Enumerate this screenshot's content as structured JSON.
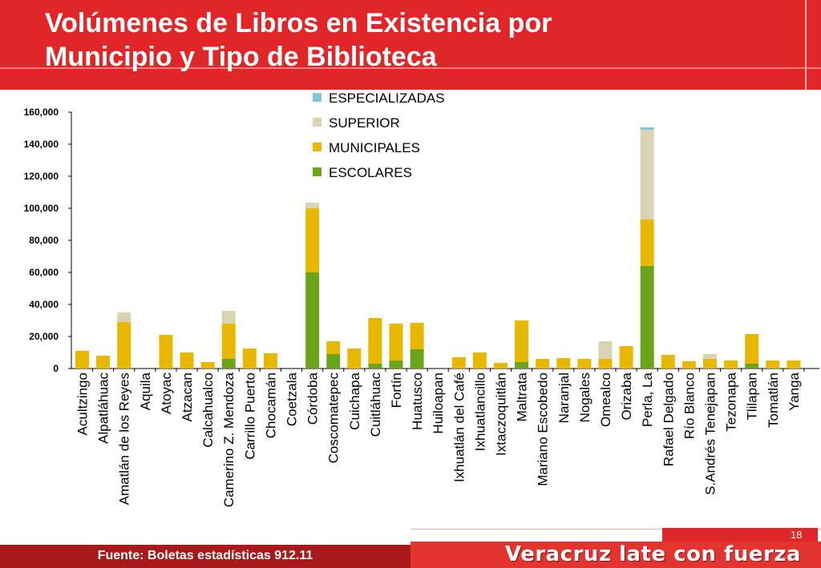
{
  "title_line1": "Volúmenes de Libros en Existencia por",
  "title_line2": "Municipio y Tipo de Biblioteca",
  "footer": {
    "source": "Fuente: Boletas estadísticas 912.11",
    "page_number": "18",
    "slogan": "Veracruz late con fuerza"
  },
  "colors": {
    "header": "#e1262a",
    "footer_dark": "#a8191c",
    "escolares": "#6aa51a",
    "municipales": "#e8b800",
    "superior": "#d8d4b4",
    "especializadas": "#7ec6d8"
  },
  "chart_data": {
    "type": "bar",
    "stacked": true,
    "categories": [
      "Acultzingo",
      "Alpatláhuac",
      "Amatlán de los Reyes",
      "Aquila",
      "Atoyac",
      "Atzacan",
      "Calcahualco",
      "Camerino Z. Mendoza",
      "Carrillo Puerto",
      "Chocamán",
      "Coetzala",
      "Córdoba",
      "Coscomatepec",
      "Cuichapa",
      "Cuitláhuac",
      "Fortín",
      "Huatusco",
      "Huiloapan",
      "Ixhuatlán del Café",
      "Ixhuatlancillo",
      "Ixtaczoquitlán",
      "Maltrata",
      "Mariano Escobedo",
      "Naranjal",
      "Nogales",
      "Omealco",
      "Orizaba",
      "Perla, La",
      "Rafael Delgado",
      "Río Blanco",
      "S.Andrés Tenejapan",
      "Tezonapa",
      "Tlilapan",
      "Tomatlán",
      "Yanga"
    ],
    "series": [
      {
        "name": "ESCOLARES",
        "values": [
          0,
          0,
          0,
          0,
          0,
          0,
          0,
          6000,
          0,
          0,
          0,
          60000,
          9000,
          0,
          3000,
          5000,
          12000,
          0,
          0,
          0,
          0,
          4000,
          0,
          0,
          0,
          0,
          0,
          64000,
          0,
          0,
          0,
          0,
          3000,
          0,
          0
        ]
      },
      {
        "name": "MUNICIPALES",
        "values": [
          11000,
          8000,
          29000,
          0,
          21000,
          10000,
          4000,
          22000,
          12500,
          9500,
          0,
          40000,
          8000,
          12500,
          28500,
          23000,
          16500,
          0,
          7000,
          10000,
          3500,
          26000,
          6000,
          6500,
          6000,
          6000,
          14000,
          29000,
          8500,
          4500,
          6000,
          5000,
          18500,
          5000,
          5000
        ]
      },
      {
        "name": "SUPERIOR",
        "values": [
          0,
          0,
          6000,
          0,
          0,
          0,
          0,
          8000,
          0,
          0,
          0,
          3500,
          0,
          0,
          0,
          0,
          0,
          0,
          0,
          0,
          0,
          0,
          0,
          0,
          0,
          11000,
          0,
          56000,
          0,
          0,
          3000,
          0,
          0,
          0,
          0
        ]
      },
      {
        "name": "ESPECIALIZADAS",
        "values": [
          0,
          0,
          0,
          0,
          0,
          0,
          0,
          0,
          0,
          0,
          0,
          0,
          0,
          0,
          0,
          0,
          0,
          0,
          0,
          0,
          0,
          0,
          0,
          0,
          0,
          0,
          0,
          1500,
          0,
          0,
          0,
          0,
          0,
          0,
          0
        ]
      }
    ],
    "ylim": [
      0,
      160000
    ],
    "yticks": [
      0,
      20000,
      40000,
      60000,
      80000,
      100000,
      120000,
      140000,
      160000
    ],
    "ytick_labels": [
      "0",
      "20,000",
      "40,000",
      "60,000",
      "80,000",
      "100,000",
      "120,000",
      "140,000",
      "160,000"
    ],
    "legend_order": [
      "ESPECIALIZADAS",
      "SUPERIOR",
      "MUNICIPALES",
      "ESCOLARES"
    ],
    "legend_position": "top-center",
    "grid": false
  }
}
